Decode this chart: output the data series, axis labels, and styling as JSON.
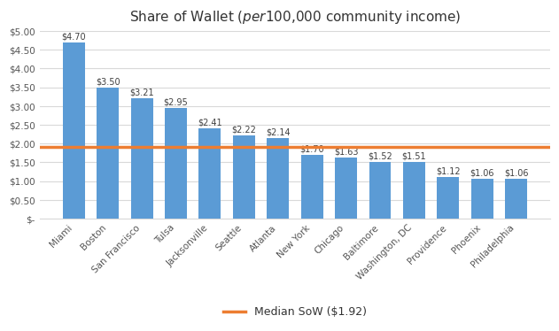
{
  "title": "Share of Wallet ($ per $100,000 community income)",
  "categories": [
    "Miami",
    "Boston",
    "San Francisco",
    "Tulsa",
    "Jacksonville",
    "Seattle",
    "Atlanta",
    "New York",
    "Chicago",
    "Baltimore",
    "Washington, DC",
    "Providence",
    "Phoenix",
    "Philadelphia"
  ],
  "values": [
    4.7,
    3.5,
    3.21,
    2.95,
    2.41,
    2.22,
    2.14,
    1.7,
    1.63,
    1.52,
    1.51,
    1.12,
    1.06,
    1.06
  ],
  "bar_color": "#5B9BD5",
  "median_value": 1.92,
  "median_label": "Median SoW ($1.92)",
  "median_color": "#ED7D31",
  "ylim": [
    0,
    5.0
  ],
  "yticks": [
    0,
    0.5,
    1.0,
    1.5,
    2.0,
    2.5,
    3.0,
    3.5,
    4.0,
    4.5,
    5.0
  ],
  "ytick_labels": [
    "$-",
    "$0.50",
    "$1.00",
    "$1.50",
    "$2.00",
    "$2.50",
    "$3.00",
    "$3.50",
    "$4.00",
    "$4.50",
    "$5.00"
  ],
  "background_color": "#FFFFFF",
  "grid_color": "#D9D9D9",
  "title_fontsize": 11,
  "bar_label_fontsize": 7,
  "tick_fontsize": 7.5,
  "legend_fontsize": 9,
  "bar_width": 0.65
}
